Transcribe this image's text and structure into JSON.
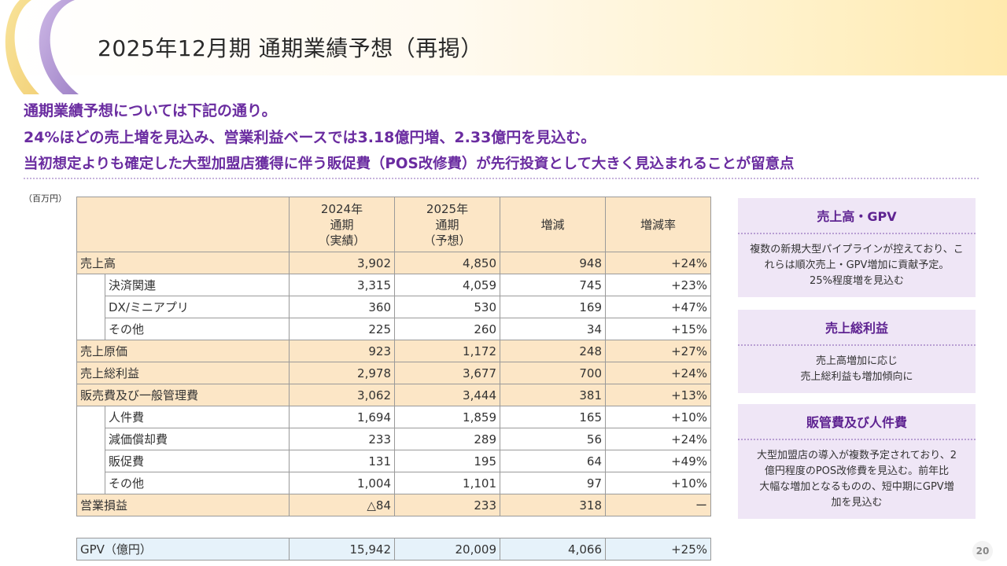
{
  "title": "2025年12月期 通期業績予想（再掲）",
  "lead": [
    "通期業績予想については下記の通り。",
    "24%ほどの売上増を見込み、営業利益ベースでは3.18億円増、2.33億円を見込む。",
    "当初想定よりも確定した大型加盟店獲得に伴う販促費（POS改修費）が先行投資として大きく見込まれることが留意点"
  ],
  "unit": "（百万円）",
  "table": {
    "headers": [
      [
        "2024年",
        "通期",
        "（実績）"
      ],
      [
        "2025年",
        "通期",
        "（予想）"
      ],
      [
        "増減"
      ],
      [
        "増減率"
      ]
    ],
    "rows": [
      {
        "label": "売上高",
        "main": true,
        "values": [
          "3,902",
          "4,850",
          "948",
          "+24%"
        ]
      },
      {
        "label": "決済関連",
        "main": false,
        "values": [
          "3,315",
          "4,059",
          "745",
          "+23%"
        ]
      },
      {
        "label": "DX/ミニアプリ",
        "main": false,
        "values": [
          "360",
          "530",
          "169",
          "+47%"
        ]
      },
      {
        "label": "その他",
        "main": false,
        "values": [
          "225",
          "260",
          "34",
          "+15%"
        ]
      },
      {
        "label": "売上原価",
        "main": true,
        "values": [
          "923",
          "1,172",
          "248",
          "+27%"
        ]
      },
      {
        "label": "売上総利益",
        "main": true,
        "values": [
          "2,978",
          "3,677",
          "700",
          "+24%"
        ]
      },
      {
        "label": "販売費及び一般管理費",
        "main": true,
        "values": [
          "3,062",
          "3,444",
          "381",
          "+13%"
        ]
      },
      {
        "label": "人件費",
        "main": false,
        "values": [
          "1,694",
          "1,859",
          "165",
          "+10%"
        ]
      },
      {
        "label": "減価償却費",
        "main": false,
        "values": [
          "233",
          "289",
          "56",
          "+24%"
        ]
      },
      {
        "label": "販促費",
        "main": false,
        "values": [
          "131",
          "195",
          "64",
          "+49%"
        ]
      },
      {
        "label": "その他",
        "main": false,
        "values": [
          "1,004",
          "1,101",
          "97",
          "+10%"
        ]
      },
      {
        "label": "営業損益",
        "main": true,
        "values": [
          "△84",
          "233",
          "318",
          "ー"
        ]
      }
    ],
    "gpv": {
      "label": "GPV（億円）",
      "values": [
        "15,942",
        "20,009",
        "4,066",
        "+25%"
      ]
    }
  },
  "side": [
    {
      "title": "売上高・GPV",
      "body": [
        "複数の新規大型パイプラインが控えており、こ",
        "れらは順次売上・GPV増加に貢献予定。",
        "25%程度増を見込む"
      ]
    },
    {
      "title": "売上総利益",
      "body": [
        "売上高増加に応じ",
        "売上総利益も増加傾向に"
      ]
    },
    {
      "title": "販管費及び人件費",
      "body": [
        "大型加盟店の導入が複数予定されており、2",
        "億円程度のPOS改修費を見込む。前年比",
        "大幅な増加となるものの、短中期にGPV増",
        "加を見込む"
      ]
    }
  ],
  "page_number": "20",
  "colors": {
    "accent_purple": "#6a2ca0",
    "table_header": "#fce6c6",
    "gpv_row": "#e6f2fa",
    "side_panel": "#efe6f6"
  }
}
